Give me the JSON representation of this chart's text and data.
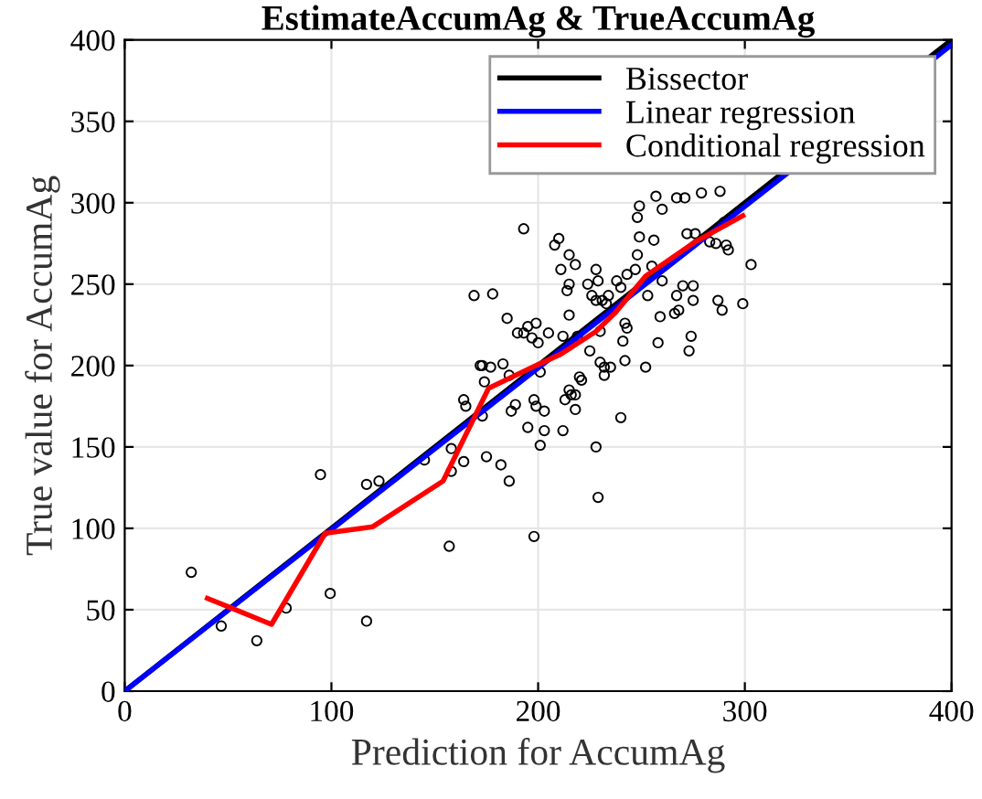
{
  "chart_data": {
    "type": "scatter",
    "title": "EstimateAccumAg & TrueAccumAg",
    "xlabel": "Prediction for AccumAg",
    "ylabel": "True value for AccumAg",
    "xlim": [
      0,
      400
    ],
    "ylim": [
      0,
      400
    ],
    "xticks": [
      0,
      100,
      200,
      300,
      400
    ],
    "yticks": [
      0,
      50,
      100,
      150,
      200,
      250,
      300,
      350,
      400
    ],
    "grid": true,
    "legend": "top right",
    "series": [
      {
        "color": "#000000",
        "marker": "circle",
        "x": [
          32.2,
          46.7,
          63.9,
          78.1,
          94.7,
          99.4,
          117,
          123,
          117,
          145,
          157,
          158,
          158,
          164,
          164,
          165,
          169,
          178,
          172,
          173,
          177,
          174,
          173,
          175,
          182,
          186,
          183,
          185,
          186,
          187,
          189,
          190,
          193,
          195,
          197,
          199,
          193,
          195,
          198,
          198,
          199,
          201,
          203,
          203,
          201,
          205,
          200,
          208,
          210,
          211,
          215,
          215,
          214,
          215,
          212,
          218,
          219,
          224,
          228,
          226,
          228,
          231,
          229,
          238,
          240,
          243,
          247,
          234,
          233,
          225,
          230,
          230,
          232,
          235,
          232,
          242,
          241,
          242,
          243,
          240,
          228,
          229,
          220,
          221,
          215,
          216,
          213,
          218,
          218,
          212,
          249,
          248,
          249,
          248,
          256,
          255,
          260,
          257,
          260,
          253,
          259,
          258,
          252,
          267,
          266,
          268,
          267,
          271,
          272,
          276,
          275,
          275,
          270,
          274,
          273,
          283,
          286,
          290,
          291,
          292,
          287,
          289,
          299,
          303,
          279,
          288
        ],
        "values": [
          73,
          40,
          31,
          51,
          133,
          60,
          127,
          129,
          43,
          142,
          89,
          149,
          135,
          141,
          179,
          175,
          243,
          244,
          200,
          200,
          199,
          190,
          169,
          144,
          139,
          129,
          201,
          229,
          194,
          172,
          176,
          220,
          220,
          224,
          217,
          226,
          284,
          162,
          95,
          179,
          175,
          151,
          160,
          172,
          196,
          220,
          214,
          274,
          278,
          259,
          268,
          250,
          246,
          231,
          218,
          262,
          218,
          250,
          259,
          243,
          240,
          240,
          252,
          252,
          248,
          256,
          259,
          243,
          238,
          209,
          221,
          202,
          199,
          199,
          194,
          203,
          215,
          226,
          223,
          168,
          150,
          119,
          193,
          191,
          185,
          182,
          179,
          182,
          173,
          160,
          298,
          291,
          279,
          268,
          277,
          261,
          296,
          304,
          252,
          243,
          230,
          214,
          199,
          243,
          232,
          234,
          303,
          303,
          281,
          281,
          249,
          240,
          249,
          218,
          209,
          276,
          275,
          288,
          274,
          271,
          240,
          234,
          238,
          262,
          306,
          307
        ]
      },
      {
        "type": "line",
        "name": "Bissector",
        "color": "#000000",
        "marker": "none",
        "x": [
          0,
          400
        ],
        "values": [
          0,
          400
        ]
      },
      {
        "type": "line",
        "name": "Linear regression",
        "color": "#0000ff",
        "marker": "none",
        "x": [
          0,
          400
        ],
        "values": [
          0,
          397
        ]
      },
      {
        "type": "line",
        "name": "Conditional regression",
        "color": "#ff0000",
        "marker": "none",
        "x": [
          40,
          71,
          97,
          120,
          154,
          176,
          199,
          211,
          228,
          237,
          252,
          276,
          299
        ],
        "values": [
          57,
          41,
          97,
          101,
          129,
          186,
          200,
          207,
          221,
          232,
          255,
          276,
          292
        ]
      }
    ]
  }
}
